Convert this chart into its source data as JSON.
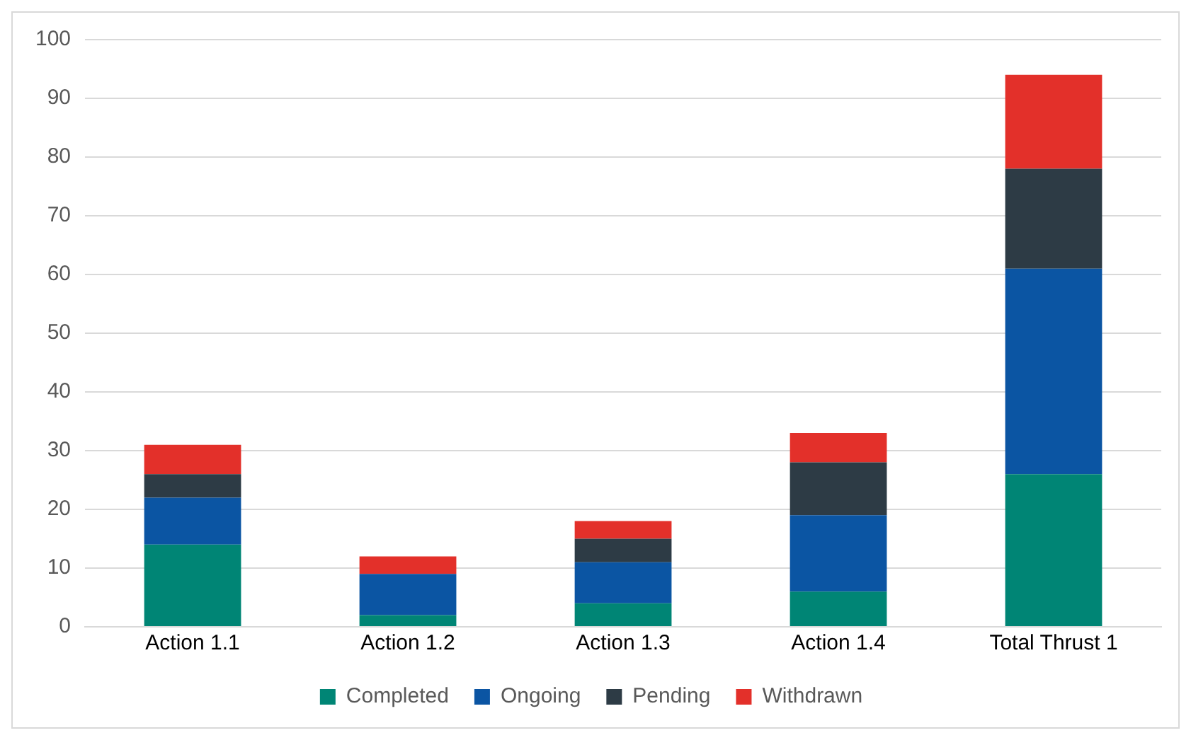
{
  "chart_data": {
    "type": "bar",
    "stacked": true,
    "categories": [
      "Action 1.1",
      "Action 1.2",
      "Action 1.3",
      "Action 1.4",
      "Total Thrust 1"
    ],
    "series": [
      {
        "name": "Completed",
        "color": "#008575",
        "values": [
          14,
          2,
          4,
          6,
          26
        ]
      },
      {
        "name": "Ongoing",
        "color": "#0b55a3",
        "values": [
          8,
          7,
          7,
          13,
          35
        ]
      },
      {
        "name": "Pending",
        "color": "#2d3b45",
        "values": [
          4,
          0,
          4,
          9,
          17
        ]
      },
      {
        "name": "Withdrawn",
        "color": "#e3302a",
        "values": [
          5,
          3,
          3,
          5,
          16
        ]
      }
    ],
    "ylim": [
      0,
      100
    ],
    "yticks": [
      0,
      10,
      20,
      30,
      40,
      50,
      60,
      70,
      80,
      90,
      100
    ],
    "grid": "y",
    "legend": "bottom"
  }
}
